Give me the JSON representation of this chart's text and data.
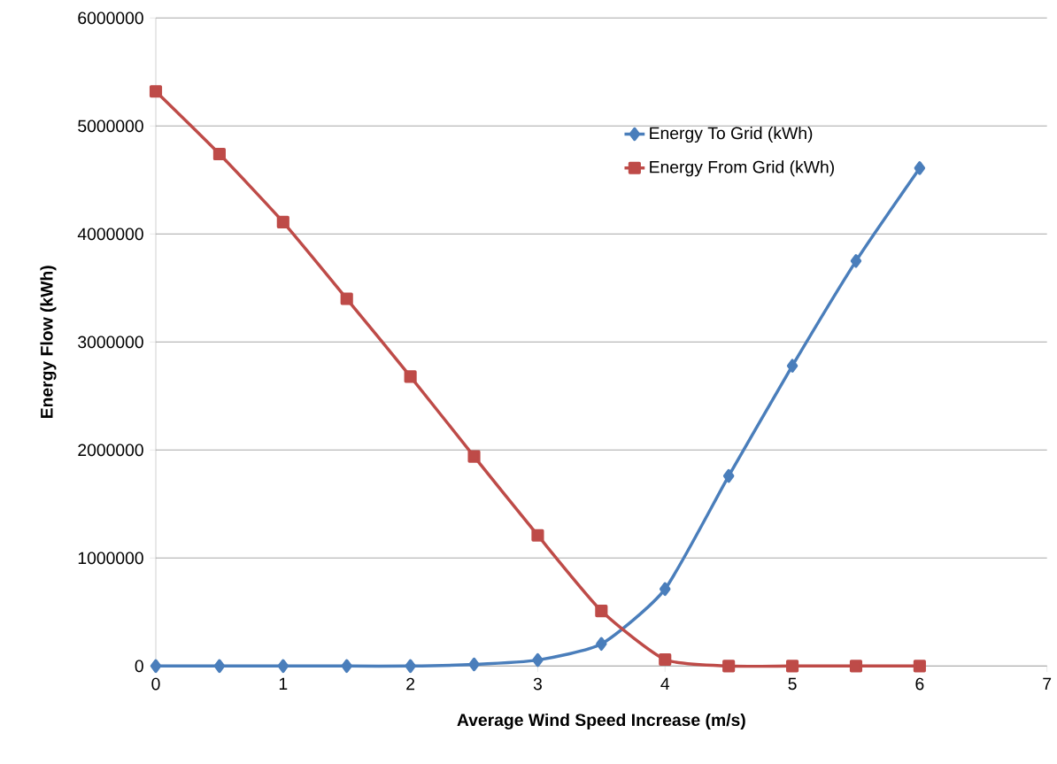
{
  "chart_data": {
    "type": "line",
    "xlabel": "Average Wind  Speed Increase (m/s)",
    "ylabel": "Energy Flow (kWh)",
    "x": [
      0,
      0.5,
      1,
      1.5,
      2,
      2.5,
      3,
      3.5,
      4,
      4.5,
      5,
      5.5,
      6
    ],
    "series": [
      {
        "name": "Energy To Grid (kWh)",
        "color": "#4a7ebb",
        "marker": "diamond",
        "values": [
          0,
          0,
          0,
          0,
          0,
          15000,
          55000,
          205000,
          713000,
          1760000,
          2780000,
          3750000,
          4610000
        ]
      },
      {
        "name": "Energy From Grid (kWh)",
        "color": "#be4b48",
        "marker": "square",
        "values": [
          5320000,
          4740000,
          4110000,
          3400000,
          2680000,
          1940000,
          1210000,
          510000,
          60000,
          0,
          0,
          0,
          0
        ]
      }
    ],
    "xlim": [
      0,
      7
    ],
    "xticks": [
      0,
      1,
      2,
      3,
      4,
      5,
      6,
      7
    ],
    "ylim": [
      0,
      6000000
    ],
    "yticks": [
      0,
      1000000,
      2000000,
      3000000,
      4000000,
      5000000,
      6000000
    ],
    "grid": "y",
    "legend": "top"
  }
}
